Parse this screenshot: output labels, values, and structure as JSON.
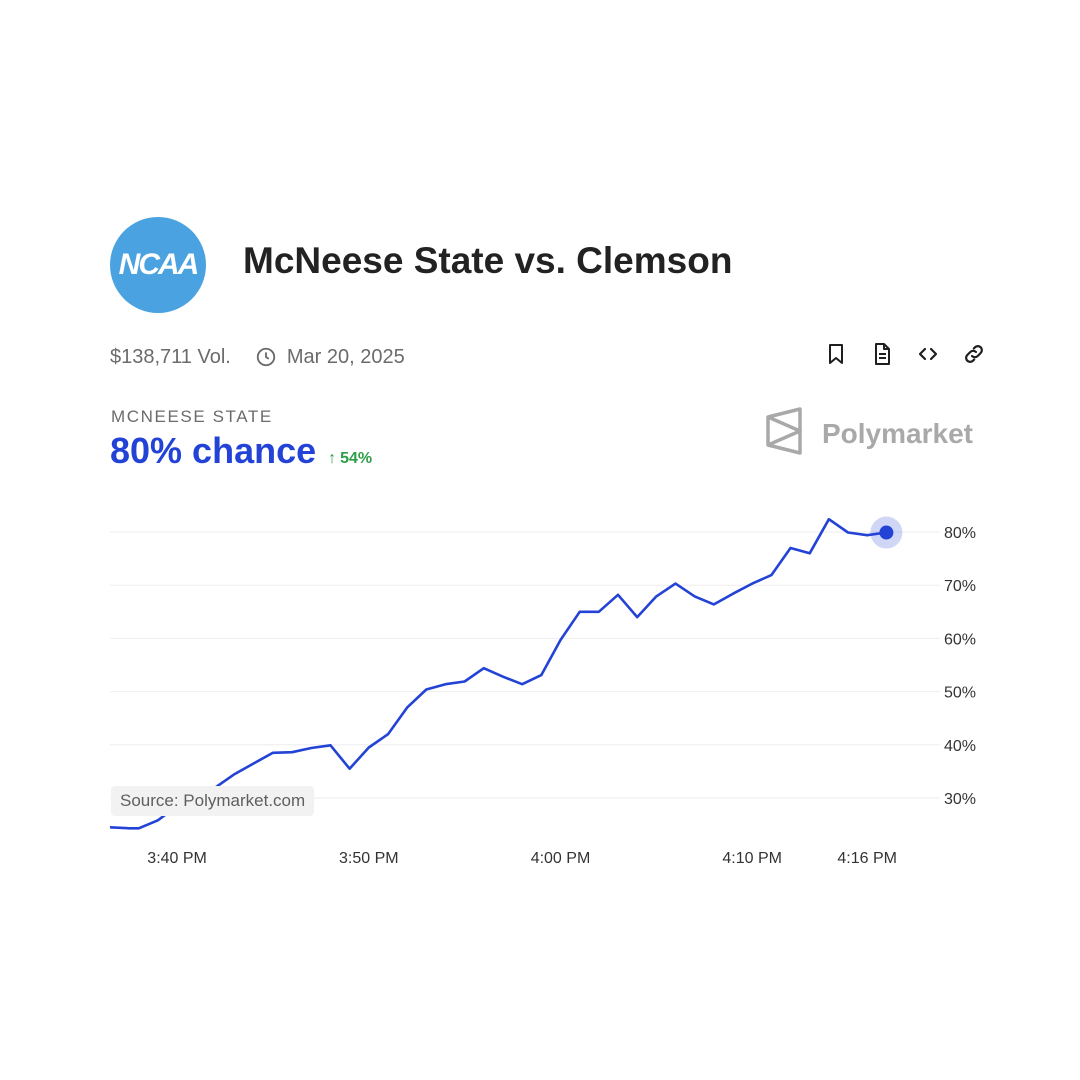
{
  "header": {
    "logo_text": "NCAA",
    "title": "McNeese State vs. Clemson",
    "volume": "$138,711 Vol.",
    "date": "Mar 20, 2025"
  },
  "icons": {
    "clock": "clock-icon",
    "bookmark": "bookmark-icon",
    "document": "document-icon",
    "embed": "code-icon",
    "link": "link-icon",
    "brand": "polymarket-logo-icon"
  },
  "market": {
    "outcome": "MCNEESE STATE",
    "chance": "80% chance",
    "change": "54%"
  },
  "brand": {
    "name": "Polymarket"
  },
  "source": "Source: Polymarket.com",
  "colors": {
    "line": "#2343d6",
    "logo": "#4aa3e0",
    "change": "#2e9d48",
    "grid": "#eeeeee"
  },
  "chart_data": {
    "type": "line",
    "title": "",
    "xlabel": "",
    "ylabel": "",
    "ylim": [
      20,
      85
    ],
    "y_ticks": [
      30,
      40,
      50,
      60,
      70,
      80
    ],
    "y_tick_labels": [
      "30%",
      "40%",
      "50%",
      "60%",
      "70%",
      "80%"
    ],
    "x_tick_minutes": [
      3.5,
      13.5,
      23.5,
      33.5,
      39.5
    ],
    "x_tick_labels": [
      "3:40 PM",
      "3:50 PM",
      "4:00 PM",
      "4:10 PM",
      "4:16 PM"
    ],
    "grid": true,
    "series": [
      {
        "points": [
          [
            0,
            24.5
          ],
          [
            1,
            24.3
          ],
          [
            1.5,
            24.3
          ],
          [
            2.5,
            25.8
          ],
          [
            3.5,
            28.5
          ],
          [
            4.5,
            30
          ],
          [
            5.5,
            32
          ],
          [
            6.5,
            34.5
          ],
          [
            7.5,
            36.5
          ],
          [
            8.5,
            38.5
          ],
          [
            9.5,
            38.6
          ],
          [
            10.5,
            39.4
          ],
          [
            11.5,
            39.9
          ],
          [
            12.5,
            35.5
          ],
          [
            13.5,
            39.5
          ],
          [
            14.5,
            42
          ],
          [
            15.5,
            47
          ],
          [
            16.5,
            50.4
          ],
          [
            17.5,
            51.4
          ],
          [
            18.5,
            51.9
          ],
          [
            19.5,
            54.4
          ],
          [
            20.5,
            52.8
          ],
          [
            21.5,
            51.4
          ],
          [
            22.5,
            53.1
          ],
          [
            23.5,
            59.7
          ],
          [
            24.5,
            65
          ],
          [
            25.5,
            65
          ],
          [
            26.5,
            68.2
          ],
          [
            27.5,
            64
          ],
          [
            28.5,
            67.9
          ],
          [
            29.5,
            70.3
          ],
          [
            30.5,
            67.9
          ],
          [
            31.5,
            66.4
          ],
          [
            32.5,
            68.4
          ],
          [
            33.5,
            70.3
          ],
          [
            34.5,
            71.9
          ],
          [
            35.5,
            77
          ],
          [
            36.5,
            76
          ],
          [
            37.5,
            82.4
          ],
          [
            38.5,
            79.9
          ],
          [
            39.5,
            79.4
          ],
          [
            40.5,
            79.9
          ]
        ]
      }
    ]
  }
}
